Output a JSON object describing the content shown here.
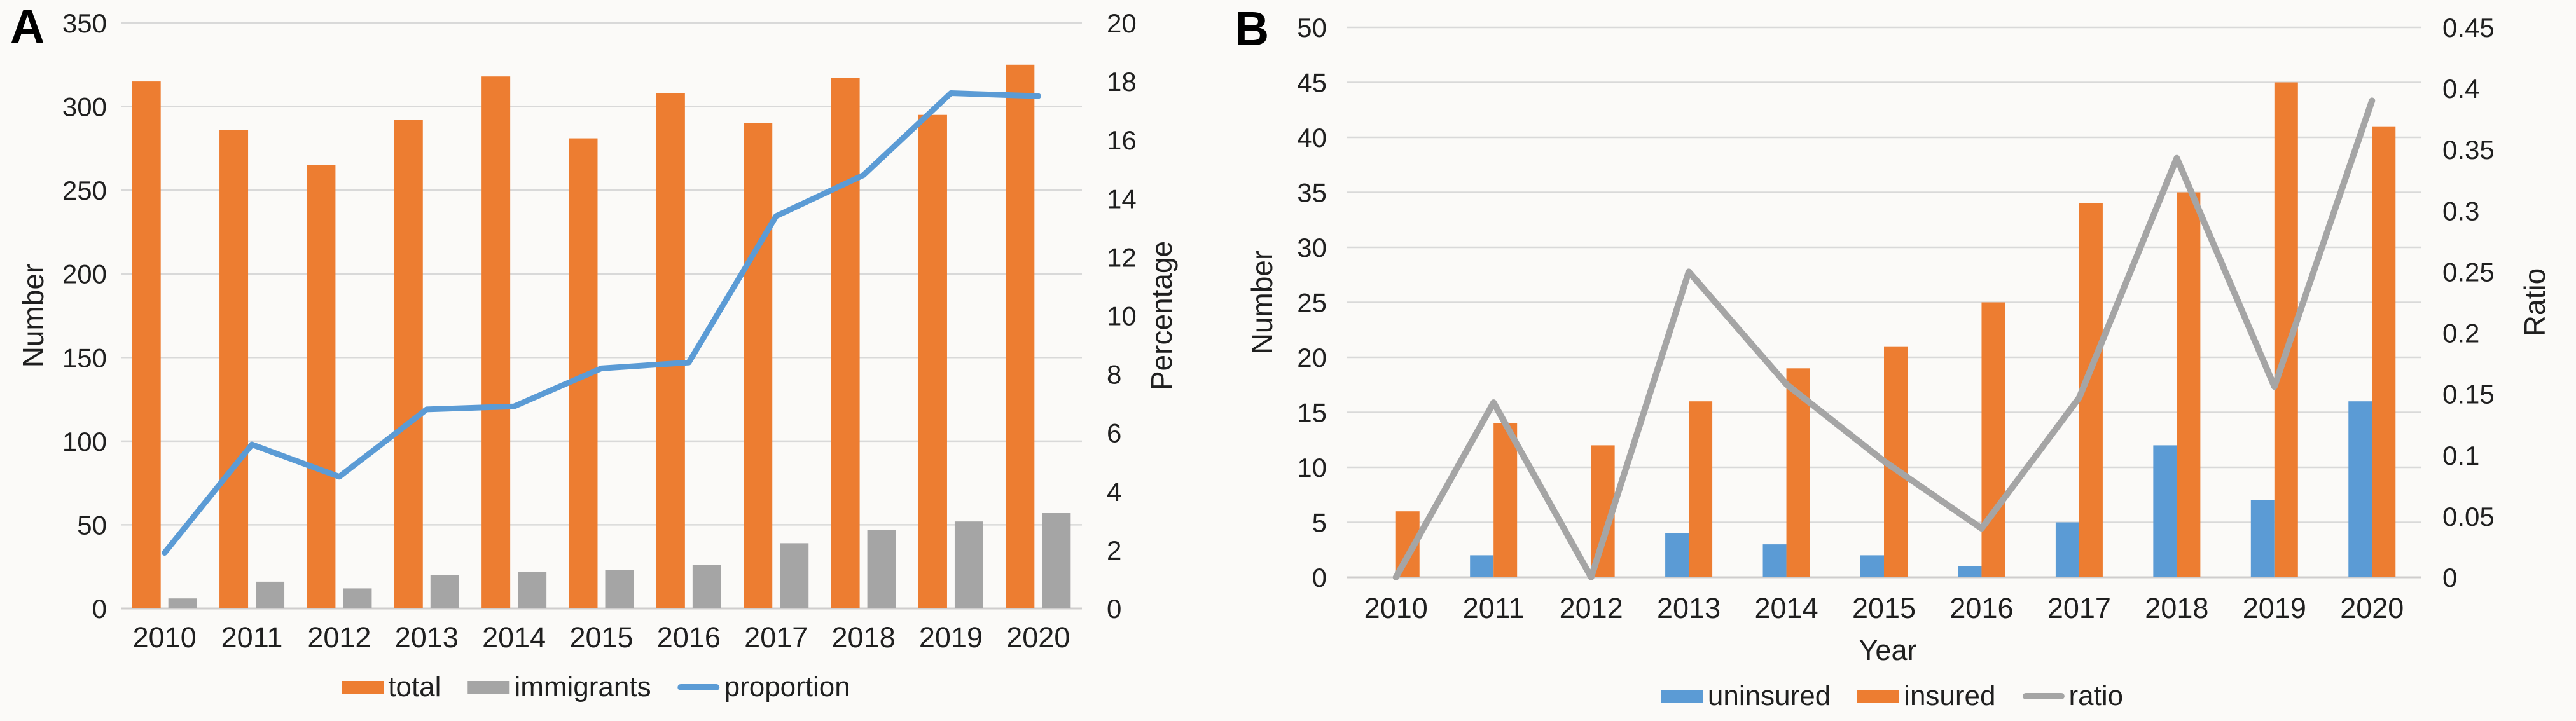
{
  "figure": {
    "background": "#FBFAF8",
    "grid_color": "#D9D9D9",
    "panels": [
      {
        "label": "A"
      },
      {
        "label": "B"
      }
    ]
  },
  "chart_data": [
    {
      "type": "bar+line",
      "panel": "A",
      "categories": [
        "2010",
        "2011",
        "2012",
        "2013",
        "2014",
        "2015",
        "2016",
        "2017",
        "2018",
        "2019",
        "2020"
      ],
      "series": [
        {
          "name": "total",
          "type": "bar",
          "axis": "left",
          "color": "#ED7D31",
          "values": [
            315,
            286,
            265,
            292,
            318,
            281,
            308,
            290,
            317,
            295,
            325
          ]
        },
        {
          "name": "immigrants",
          "type": "bar",
          "axis": "left",
          "color": "#A5A5A5",
          "values": [
            6,
            16,
            12,
            20,
            22,
            23,
            26,
            39,
            47,
            52,
            57
          ]
        },
        {
          "name": "proportion",
          "type": "line",
          "axis": "right",
          "color": "#5B9BD5",
          "values": [
            1.9,
            5.6,
            4.5,
            6.8,
            6.9,
            8.2,
            8.4,
            13.4,
            14.8,
            17.6,
            17.5
          ]
        }
      ],
      "left_axis": {
        "title": "Number",
        "min": 0,
        "max": 350,
        "step": 50,
        "ticks": [
          "0",
          "50",
          "100",
          "150",
          "200",
          "250",
          "300",
          "350"
        ]
      },
      "right_axis": {
        "title": "Percentage",
        "min": 0,
        "max": 20,
        "step": 2,
        "ticks": [
          "0",
          "2",
          "4",
          "6",
          "8",
          "10",
          "12",
          "14",
          "16",
          "18",
          "20"
        ]
      },
      "xlabel": "",
      "grid": true,
      "legend_position": "bottom"
    },
    {
      "type": "bar+line",
      "panel": "B",
      "categories": [
        "2010",
        "2011",
        "2012",
        "2013",
        "2014",
        "2015",
        "2016",
        "2017",
        "2018",
        "2019",
        "2020"
      ],
      "series": [
        {
          "name": "uninsured",
          "type": "bar",
          "axis": "left",
          "color": "#5B9BD5",
          "values": [
            0,
            2,
            0,
            4,
            3,
            2,
            1,
            5,
            12,
            7,
            16
          ]
        },
        {
          "name": "insured",
          "type": "bar",
          "axis": "left",
          "color": "#ED7D31",
          "values": [
            6,
            14,
            12,
            16,
            19,
            21,
            25,
            34,
            35,
            45,
            41
          ]
        },
        {
          "name": "ratio",
          "type": "line",
          "axis": "right",
          "color": "#A5A5A5",
          "values": [
            0,
            0.143,
            0,
            0.25,
            0.158,
            0.095,
            0.04,
            0.147,
            0.343,
            0.156,
            0.39
          ]
        }
      ],
      "left_axis": {
        "title": "Number",
        "min": 0,
        "max": 50,
        "step": 5,
        "ticks": [
          "0",
          "5",
          "10",
          "15",
          "20",
          "25",
          "30",
          "35",
          "40",
          "45",
          "50"
        ]
      },
      "right_axis": {
        "title": "Ratio",
        "min": 0,
        "max": 0.45,
        "step": 0.05,
        "ticks": [
          "0",
          "0.05",
          "0.1",
          "0.15",
          "0.2",
          "0.25",
          "0.3",
          "0.35",
          "0.4",
          "0.45"
        ]
      },
      "xlabel": "Year",
      "grid": true,
      "legend_position": "bottom"
    }
  ]
}
